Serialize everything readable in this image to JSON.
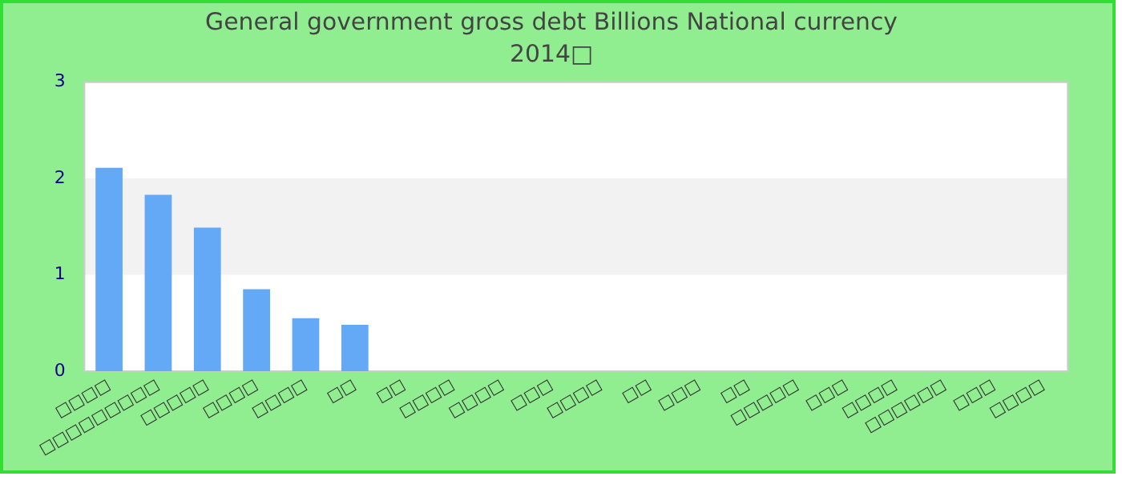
{
  "chart_data": {
    "type": "bar",
    "title": "General government gross debt Billions National currency",
    "subtitle": "2014□",
    "categories": [
      "□□□□",
      "□□□□□□□□□",
      "□□□□□",
      "□□□□",
      "□□□□",
      "□□",
      "□□",
      "□□□□",
      "□□□□",
      "□□□",
      "□□□□",
      "□□",
      "□□□",
      "□□",
      "□□□□□",
      "□□□",
      "□□□□",
      "□□□□□□",
      "□□□",
      "□□□□"
    ],
    "values": [
      2.11,
      1.83,
      1.49,
      0.85,
      0.55,
      0.48,
      0,
      0,
      0,
      0,
      0,
      0,
      0,
      0,
      0,
      0,
      0,
      0,
      0,
      0
    ],
    "color": "#63a9f5",
    "ylim": [
      0,
      3
    ],
    "yticks": [
      0,
      1,
      2,
      3
    ],
    "bands": [
      {
        "axis": "y",
        "from": 1,
        "to": 2,
        "color": "#f2f2f2"
      }
    ],
    "grid": false,
    "legend": false
  }
}
